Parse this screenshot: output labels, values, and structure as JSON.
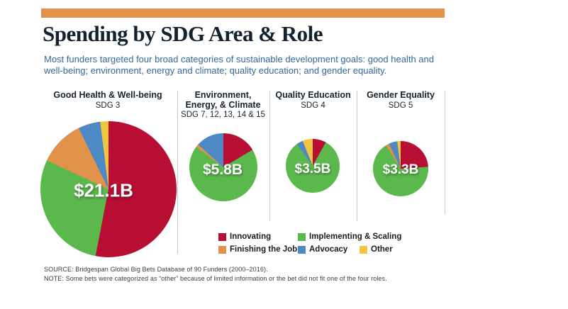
{
  "page": {
    "title": "Spending by SDG Area & Role",
    "subtitle_line1": "Most funders targeted four broad categories of sustainable development goals: good health and",
    "subtitle_line2": "well-being; environment, energy and climate; quality education; and gender equality.",
    "source": "SOURCE: Bridgespan Global Big Bets Database of 90 Funders (2000–2016).",
    "note": "NOTE: Some bets were categorized as “other” because of limited information or the bet did not fit one of the four roles."
  },
  "colors": {
    "accent_bar": "#e0924a",
    "innovating": "#b90e34",
    "implementing": "#5bb84d",
    "finishing": "#e0924a",
    "advocacy": "#4d89c5",
    "other": "#f0c63e",
    "title_text": "#14212e",
    "subtitle_text": "#31689e",
    "divider": "#c9c9c9"
  },
  "legend": {
    "items": [
      {
        "label": "Innovating",
        "color_key": "innovating"
      },
      {
        "label": "Implementing & Scaling",
        "color_key": "implementing"
      },
      {
        "label": "Finishing the Job",
        "color_key": "finishing"
      },
      {
        "label": "Advocacy",
        "color_key": "advocacy"
      },
      {
        "label": "Other",
        "color_key": "other"
      }
    ]
  },
  "chart_data": [
    {
      "type": "pie",
      "title": "Good Health & Well-being",
      "sdg": "SDG 3",
      "value_label": "$21.1B",
      "total_billions": 21.1,
      "slices": [
        {
          "role": "Innovating",
          "color_key": "innovating",
          "start_deg": 0,
          "end_deg": 191,
          "pct": 53.1
        },
        {
          "role": "Implementing & Scaling",
          "color_key": "implementing",
          "start_deg": 191,
          "end_deg": 295,
          "pct": 28.9
        },
        {
          "role": "Finishing the Job",
          "color_key": "finishing",
          "start_deg": 295,
          "end_deg": 334,
          "pct": 10.8
        },
        {
          "role": "Advocacy",
          "color_key": "advocacy",
          "start_deg": 334,
          "end_deg": 353,
          "pct": 5.3
        },
        {
          "role": "Other",
          "color_key": "other",
          "start_deg": 353,
          "end_deg": 360,
          "pct": 1.9
        }
      ]
    },
    {
      "type": "pie",
      "title": "Environment, Energy, & Climate",
      "sdg": "SDG 7, 12, 13, 14 & 15",
      "value_label": "$5.8B",
      "total_billions": 5.8,
      "slices": [
        {
          "role": "Innovating",
          "color_key": "innovating",
          "start_deg": 0,
          "end_deg": 59,
          "pct": 16.4
        },
        {
          "role": "Implementing & Scaling",
          "color_key": "implementing",
          "start_deg": 59,
          "end_deg": 307,
          "pct": 68.9
        },
        {
          "role": "Finishing the Job",
          "color_key": "finishing",
          "start_deg": 307,
          "end_deg": 312,
          "pct": 1.4
        },
        {
          "role": "Advocacy",
          "color_key": "advocacy",
          "start_deg": 312,
          "end_deg": 360,
          "pct": 13.3
        }
      ]
    },
    {
      "type": "pie",
      "title": "Quality Education",
      "sdg": "SDG 4",
      "value_label": "$3.5B",
      "total_billions": 3.5,
      "slices": [
        {
          "role": "Innovating",
          "color_key": "innovating",
          "start_deg": 0,
          "end_deg": 29,
          "pct": 8.1
        },
        {
          "role": "Implementing & Scaling",
          "color_key": "implementing",
          "start_deg": 29,
          "end_deg": 324,
          "pct": 81.9
        },
        {
          "role": "Advocacy",
          "color_key": "advocacy",
          "start_deg": 324,
          "end_deg": 338,
          "pct": 3.9
        },
        {
          "role": "Other",
          "color_key": "other",
          "start_deg": 338,
          "end_deg": 360,
          "pct": 6.1
        }
      ]
    },
    {
      "type": "pie",
      "title": "Gender Equality",
      "sdg": "SDG 5",
      "value_label": "$3.3B",
      "total_billions": 3.3,
      "slices": [
        {
          "role": "Innovating",
          "color_key": "innovating",
          "start_deg": 0,
          "end_deg": 86,
          "pct": 23.9
        },
        {
          "role": "Implementing & Scaling",
          "color_key": "implementing",
          "start_deg": 86,
          "end_deg": 328,
          "pct": 67.2
        },
        {
          "role": "Finishing the Job",
          "color_key": "finishing",
          "start_deg": 328,
          "end_deg": 335,
          "pct": 1.9
        },
        {
          "role": "Advocacy",
          "color_key": "advocacy",
          "start_deg": 335,
          "end_deg": 353,
          "pct": 5.0
        },
        {
          "role": "Other",
          "color_key": "other",
          "start_deg": 353,
          "end_deg": 360,
          "pct": 1.9
        }
      ]
    }
  ]
}
